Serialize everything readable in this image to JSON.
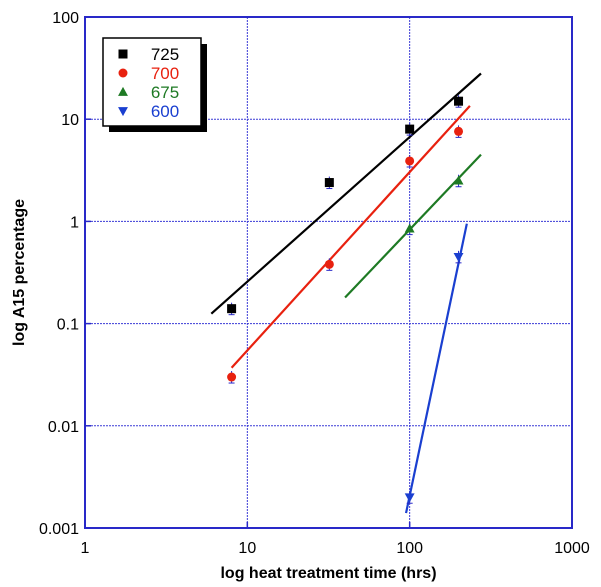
{
  "chart_data": {
    "type": "scatter",
    "xlabel": "log heat treatment time (hrs)",
    "ylabel": "log A15 percentage",
    "x_scale": "log",
    "y_scale": "log",
    "xlim": [
      1,
      1000
    ],
    "ylim": [
      0.001,
      100
    ],
    "x_ticks": [
      "1",
      "10",
      "100",
      "1000"
    ],
    "y_ticks": [
      "0.001",
      "0.01",
      "0.1",
      "1",
      "10",
      "100"
    ],
    "grid": true,
    "legend_position": "top-left",
    "series": [
      {
        "name": "725",
        "color": "#000000",
        "marker": "square",
        "points": [
          {
            "x": 8,
            "y": 0.14
          },
          {
            "x": 32,
            "y": 2.4
          },
          {
            "x": 100,
            "y": 8.0
          },
          {
            "x": 200,
            "y": 15.0
          }
        ],
        "fit": [
          {
            "x": 6,
            "y": 0.125
          },
          {
            "x": 275,
            "y": 28
          }
        ]
      },
      {
        "name": "700",
        "color": "#e8210f",
        "marker": "circle",
        "points": [
          {
            "x": 8,
            "y": 0.03
          },
          {
            "x": 32,
            "y": 0.38
          },
          {
            "x": 100,
            "y": 3.9
          },
          {
            "x": 200,
            "y": 7.6
          }
        ],
        "fit": [
          {
            "x": 8,
            "y": 0.037
          },
          {
            "x": 235,
            "y": 13.5
          }
        ]
      },
      {
        "name": "675",
        "color": "#1e7a24",
        "marker": "triangle-up",
        "points": [
          {
            "x": 100,
            "y": 0.85
          },
          {
            "x": 200,
            "y": 2.5
          }
        ],
        "fit": [
          {
            "x": 40,
            "y": 0.18
          },
          {
            "x": 275,
            "y": 4.5
          }
        ]
      },
      {
        "name": "600",
        "color": "#1a3fd0",
        "marker": "triangle-down",
        "points": [
          {
            "x": 100,
            "y": 0.002
          },
          {
            "x": 200,
            "y": 0.45
          }
        ],
        "fit": [
          {
            "x": 95,
            "y": 0.0014
          },
          {
            "x": 225,
            "y": 0.95
          }
        ]
      }
    ]
  }
}
